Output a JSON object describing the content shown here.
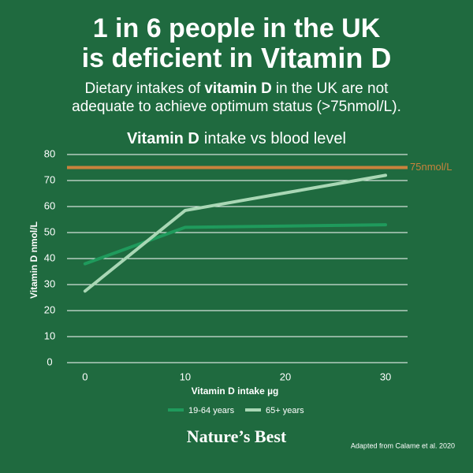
{
  "header": {
    "line1": "1 in 6 people in the UK",
    "line2": "is deficient in",
    "line2_bold": "Vitamin D"
  },
  "subtitle": {
    "line1_start": "Dietary intakes of",
    "line1_bold": "vitamin D",
    "line1_end": "in the UK are not",
    "line2": "adequate to achieve optimum status (>75nmol/L)."
  },
  "chart_data": {
    "type": "line",
    "title_bold": "Vitamin D",
    "title": "intake vs blood level",
    "x_label": "Vitamin D intake µg",
    "y_label": "Vitamin D nmol/L",
    "x": [
      0,
      10,
      30
    ],
    "series": [
      {
        "name": "19-64 years",
        "color": "#1f9a5c",
        "values": [
          38,
          52,
          53
        ]
      },
      {
        "name": "65+ years",
        "color": "#a9d7b5",
        "values": [
          27.5,
          58.5,
          72
        ]
      }
    ],
    "reference": {
      "value": 75,
      "label": "75nmol/L",
      "color": "#c9823c"
    },
    "xlim": [
      -1.8,
      32.2
    ],
    "xticks": [
      0,
      10,
      20,
      30
    ],
    "ylim": [
      0,
      80
    ],
    "yticks": [
      0,
      10,
      20,
      30,
      40,
      50,
      60,
      70,
      80
    ],
    "grid": true
  },
  "footer": {
    "brand": "Nature’s Best",
    "source": "Adapted from Calame et al. 2020"
  }
}
